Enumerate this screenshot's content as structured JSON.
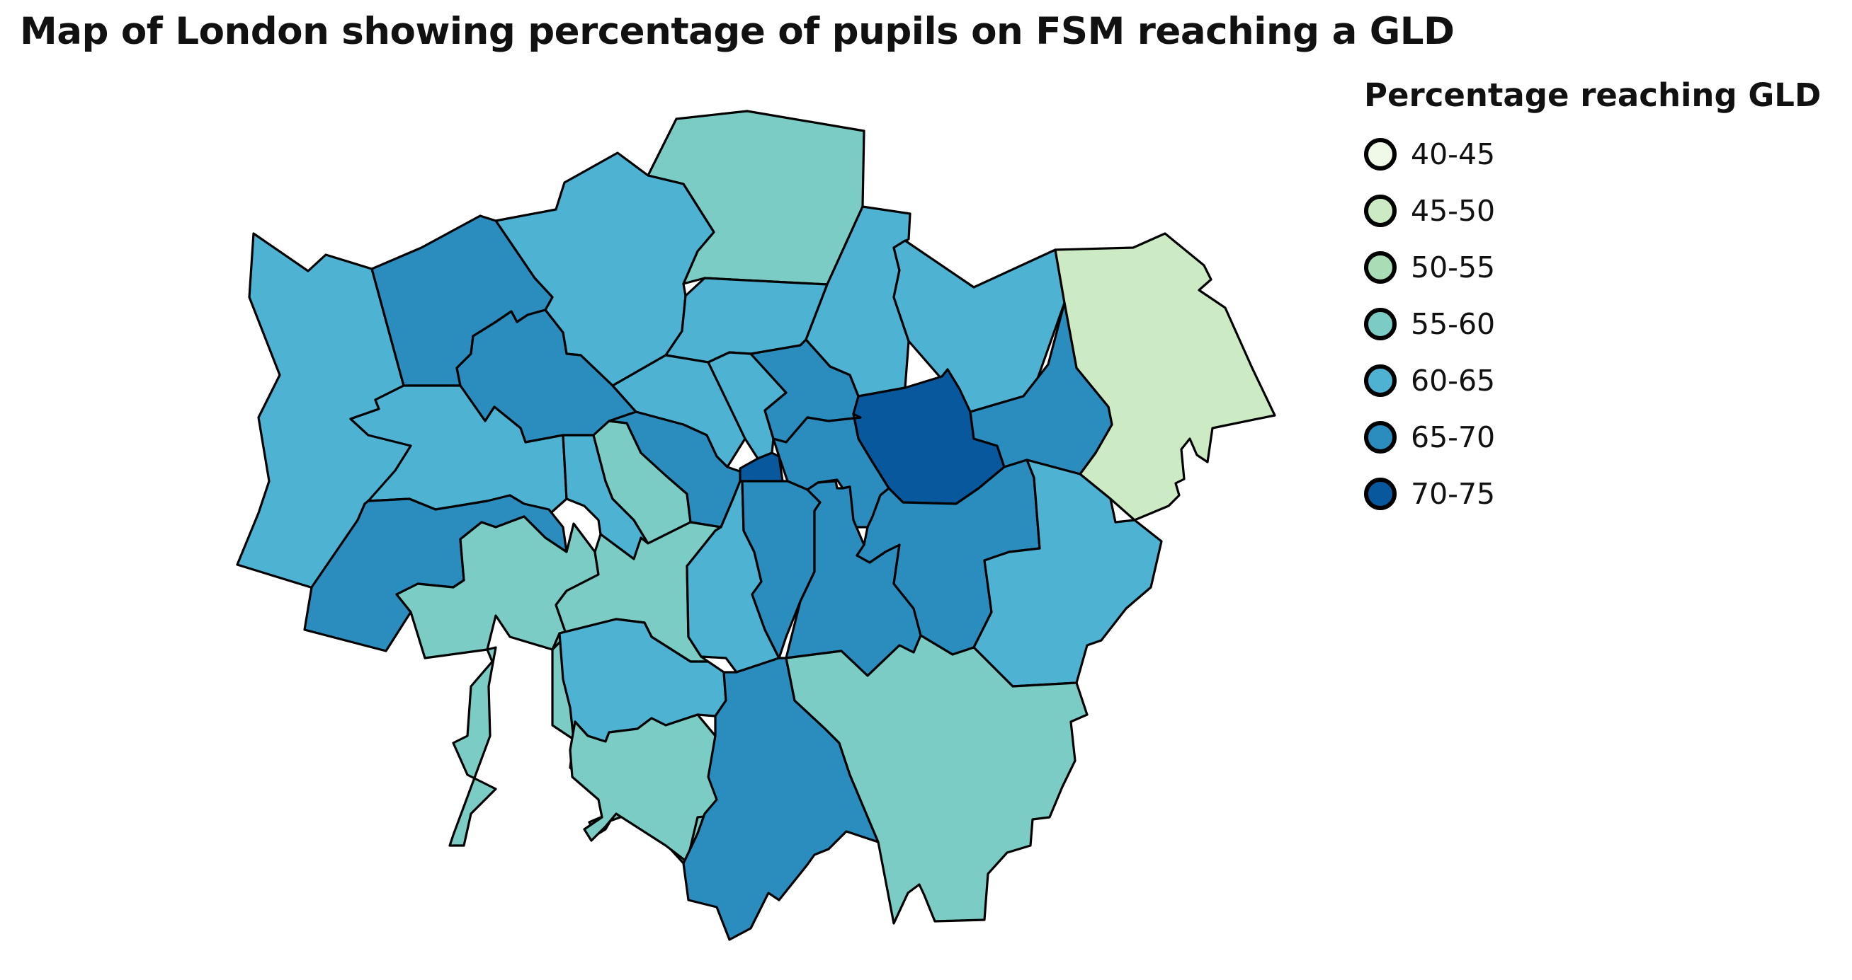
{
  "title": "Map of London showing percentage of pupils on FSM reaching a GLD",
  "legend": {
    "title": "Percentage reaching GLD",
    "items": [
      {
        "label": "40-45",
        "color": "#f0f9e8"
      },
      {
        "label": "45-50",
        "color": "#ccebc5"
      },
      {
        "label": "50-55",
        "color": "#a8ddb5"
      },
      {
        "label": "55-60",
        "color": "#7bccc4"
      },
      {
        "label": "60-65",
        "color": "#4eb3d3"
      },
      {
        "label": "65-70",
        "color": "#2b8cbe"
      },
      {
        "label": "70-75",
        "color": "#08589e"
      }
    ]
  },
  "chart_data": {
    "type": "choropleth",
    "title": "Map of London showing percentage of pupils on FSM reaching a GLD",
    "legend_title": "Percentage reaching GLD",
    "legend_placement": "top-right",
    "bins": [
      "40-45",
      "45-50",
      "50-55",
      "55-60",
      "60-65",
      "65-70",
      "70-75"
    ],
    "regions": [
      {
        "id": "enfield",
        "bin": "55-60"
      },
      {
        "id": "barnet",
        "bin": "60-65"
      },
      {
        "id": "haringey",
        "bin": "60-65"
      },
      {
        "id": "waltham-forest",
        "bin": "60-65"
      },
      {
        "id": "redbridge",
        "bin": "60-65"
      },
      {
        "id": "havering",
        "bin": "45-50"
      },
      {
        "id": "hillingdon",
        "bin": "60-65"
      },
      {
        "id": "harrow",
        "bin": "65-70"
      },
      {
        "id": "brent",
        "bin": "65-70"
      },
      {
        "id": "camden",
        "bin": "60-65"
      },
      {
        "id": "islington",
        "bin": "60-65"
      },
      {
        "id": "hackney",
        "bin": "65-70"
      },
      {
        "id": "newham",
        "bin": "70-75"
      },
      {
        "id": "barking-dagenham",
        "bin": "65-70"
      },
      {
        "id": "ealing",
        "bin": "60-65"
      },
      {
        "id": "hammersmith-fulham",
        "bin": "60-65"
      },
      {
        "id": "kensington-chelsea",
        "bin": "55-60"
      },
      {
        "id": "westminster",
        "bin": "65-70"
      },
      {
        "id": "city-of-london",
        "bin": "70-75"
      },
      {
        "id": "tower-hamlets",
        "bin": "65-70"
      },
      {
        "id": "hounslow",
        "bin": "65-70"
      },
      {
        "id": "richmond",
        "bin": "55-60"
      },
      {
        "id": "wandsworth",
        "bin": "55-60"
      },
      {
        "id": "lambeth",
        "bin": "60-65"
      },
      {
        "id": "southwark",
        "bin": "65-70"
      },
      {
        "id": "lewisham",
        "bin": "65-70"
      },
      {
        "id": "greenwich",
        "bin": "65-70"
      },
      {
        "id": "bexley",
        "bin": "60-65"
      },
      {
        "id": "kingston",
        "bin": "55-60"
      },
      {
        "id": "merton",
        "bin": "60-65"
      },
      {
        "id": "sutton",
        "bin": "55-60"
      },
      {
        "id": "croydon",
        "bin": "65-70"
      },
      {
        "id": "bromley",
        "bin": "55-60"
      }
    ]
  }
}
